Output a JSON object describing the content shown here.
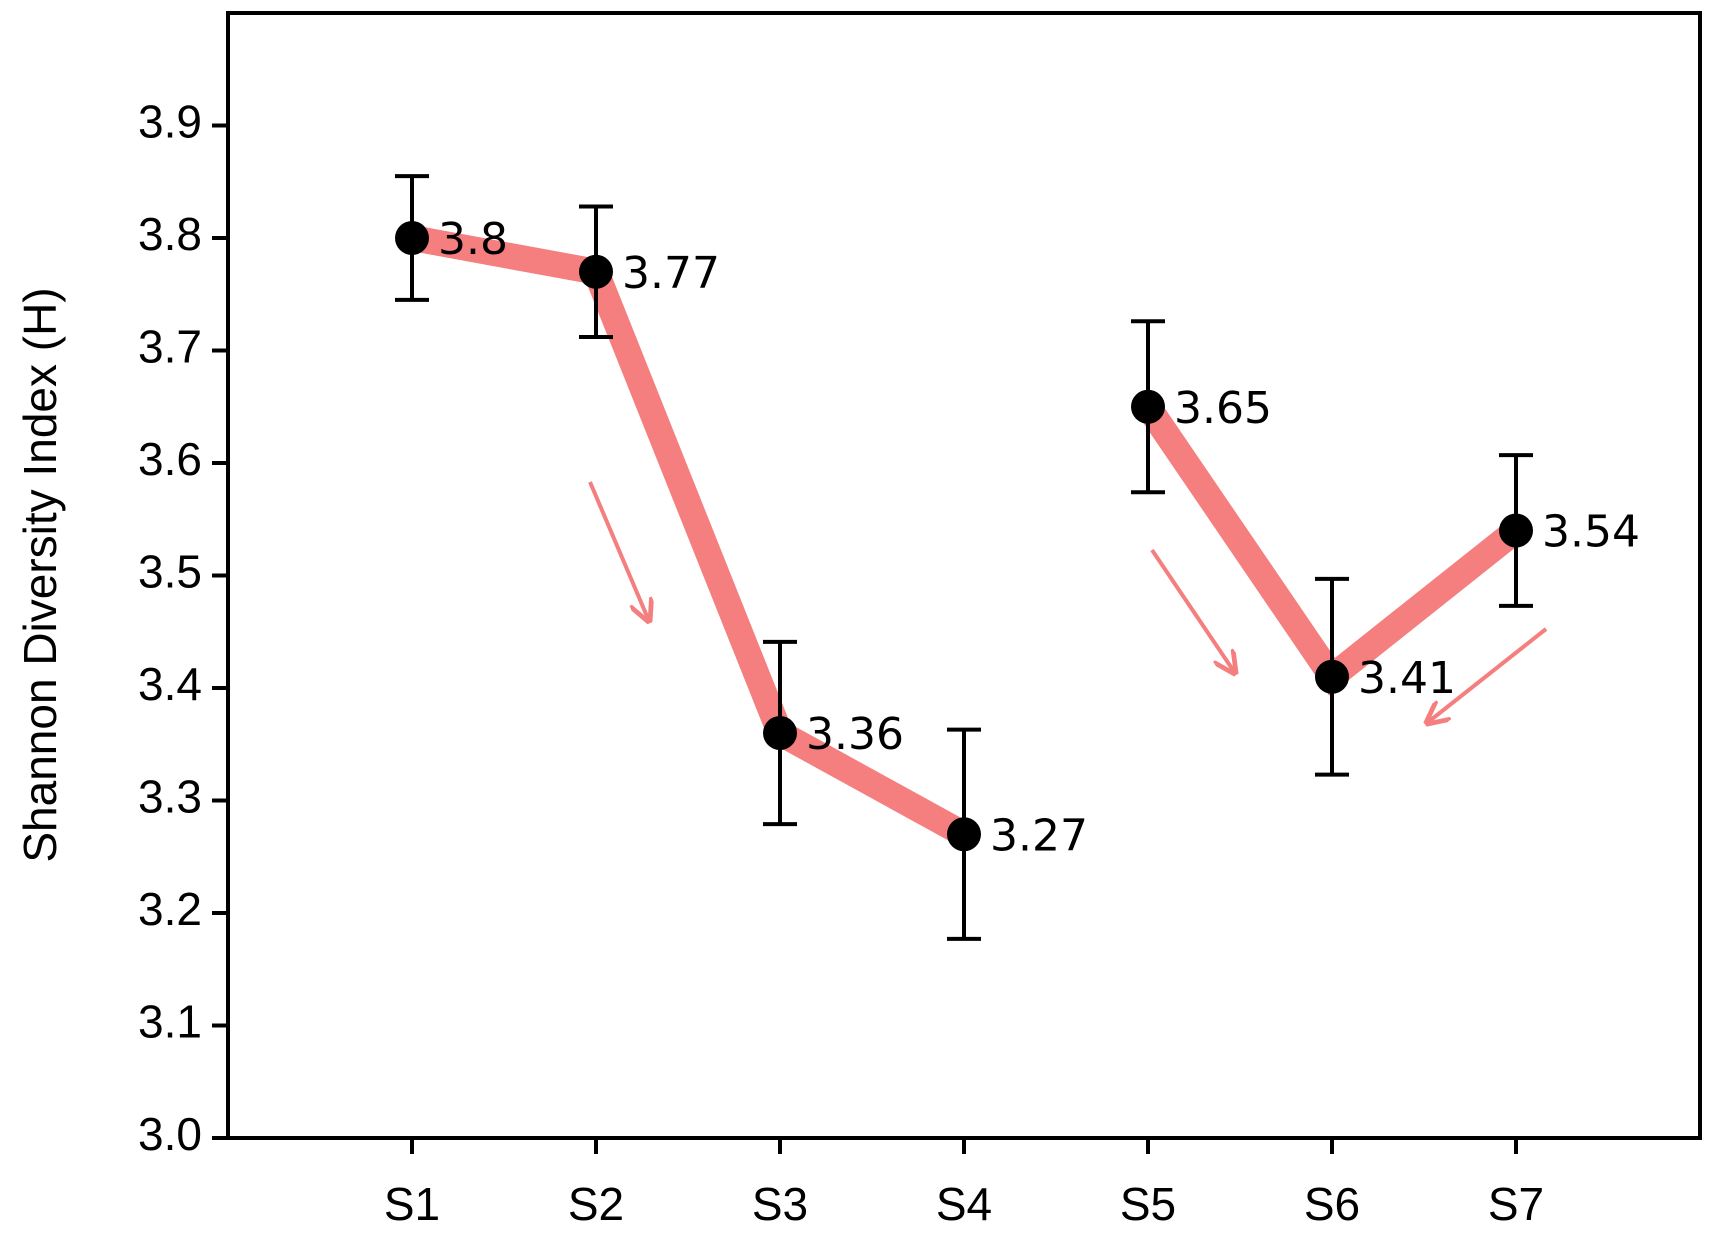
{
  "chart_data": {
    "type": "line",
    "ylabel": "Shannon Diversity Index (H)",
    "categories": [
      "S1",
      "S2",
      "S3",
      "S4",
      "S5",
      "S6",
      "S7"
    ],
    "values": [
      3.8,
      3.77,
      3.36,
      3.27,
      3.65,
      3.41,
      3.54
    ],
    "errors": [
      0.055,
      0.058,
      0.081,
      0.093,
      0.076,
      0.087,
      0.067
    ],
    "series": [
      {
        "color": "#f57f7f",
        "values": [
          3.8,
          3.77,
          3.36,
          3.27,
          null,
          null,
          null
        ]
      },
      {
        "color": "#f57f7f",
        "values": [
          null,
          null,
          null,
          null,
          3.65,
          3.41,
          3.54
        ]
      }
    ],
    "marker_color": "#000000",
    "ylim": [
      3.0,
      4.0
    ],
    "yticks": [
      {
        "value": 3,
        "label": "3.0"
      },
      3.1,
      3.2,
      3.3,
      3.4,
      3.5,
      3.6,
      3.7,
      3.8,
      3.9
    ]
  }
}
